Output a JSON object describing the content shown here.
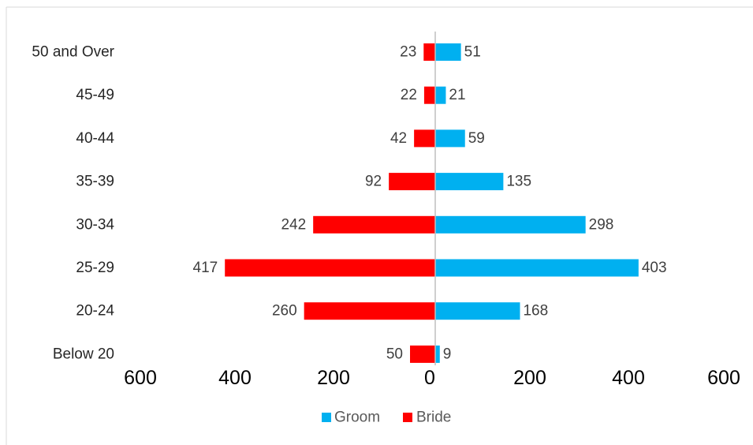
{
  "chart_data": {
    "type": "bar",
    "orientation": "horizontal",
    "layout": "diverging",
    "categories": [
      "50 and Over",
      "45-49",
      "40-44",
      "35-39",
      "30-34",
      "25-29",
      "20-24",
      "Below 20"
    ],
    "series": [
      {
        "name": "Groom",
        "color": "#00B0F0",
        "side": "right",
        "values": [
          51,
          21,
          59,
          135,
          298,
          403,
          168,
          9
        ]
      },
      {
        "name": "Bride",
        "color": "#FF0000",
        "side": "left",
        "values": [
          23,
          22,
          42,
          92,
          242,
          417,
          260,
          50
        ]
      }
    ],
    "x_tick_labels": [
      "600",
      "400",
      "200",
      "0",
      "200",
      "400",
      "600"
    ],
    "xlim": [
      -600,
      600
    ],
    "legend": {
      "position": "bottom",
      "entries": [
        "Groom",
        "Bride"
      ]
    },
    "grid": false,
    "title": "",
    "xlabel": "",
    "ylabel": ""
  },
  "colors": {
    "axis": "#BFBFBF",
    "frame": "#D9D9D9"
  }
}
